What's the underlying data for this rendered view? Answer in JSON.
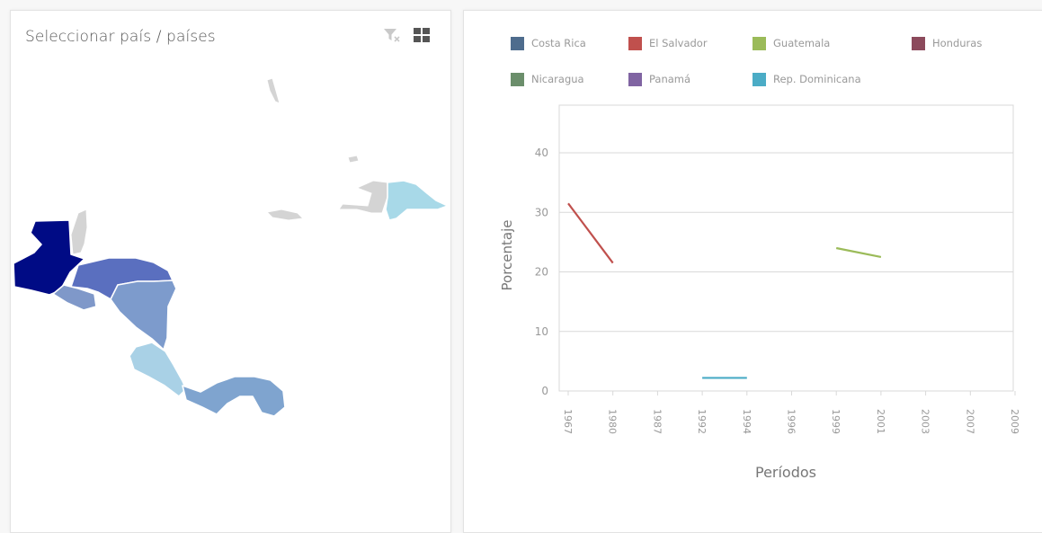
{
  "map_panel": {
    "title": "Seleccionar país / países",
    "icons": {
      "filter": "filter-clear-icon",
      "layout": "grid-layout-icon"
    },
    "colors": {
      "guatemala": "#000b85",
      "honduras": "#5a6fbf",
      "el_salvador": "#7f98c9",
      "nicaragua": "#7d9bcc",
      "costa_rica": "#a9d1e6",
      "panama": "#7fa4cf",
      "dominican_republic": "#a8d9e8",
      "other": "#d4d4d4"
    }
  },
  "chart_data": {
    "type": "line",
    "title": "",
    "xlabel": "Períodos",
    "ylabel": "Porcentaje",
    "categories": [
      "1967",
      "1980",
      "1987",
      "1992",
      "1994",
      "1996",
      "1999",
      "2001",
      "2003",
      "2007",
      "2009"
    ],
    "ylim": [
      0,
      48
    ],
    "yticks": [
      0,
      10,
      20,
      30,
      40
    ],
    "grid": true,
    "legend_position": "top",
    "series": [
      {
        "name": "Costa Rica",
        "color": "#4e6c8d",
        "values": [
          null,
          null,
          null,
          null,
          null,
          null,
          null,
          null,
          null,
          null,
          null
        ]
      },
      {
        "name": "El Salvador",
        "color": "#c0504d",
        "values": [
          31.5,
          21.5,
          null,
          null,
          null,
          null,
          null,
          null,
          null,
          null,
          null
        ]
      },
      {
        "name": "Guatemala",
        "color": "#9bbb59",
        "values": [
          null,
          null,
          null,
          null,
          null,
          null,
          24,
          22.5,
          null,
          null,
          null
        ]
      },
      {
        "name": "Honduras",
        "color": "#8c4a5c",
        "values": [
          null,
          null,
          null,
          null,
          null,
          null,
          null,
          null,
          null,
          null,
          null
        ]
      },
      {
        "name": "Nicaragua",
        "color": "#6b8e6b",
        "values": [
          null,
          null,
          null,
          null,
          null,
          null,
          null,
          null,
          null,
          null,
          null
        ]
      },
      {
        "name": "Panamá",
        "color": "#8064a2",
        "values": [
          null,
          null,
          null,
          null,
          null,
          null,
          null,
          null,
          null,
          null,
          null
        ]
      },
      {
        "name": "Rep. Dominicana",
        "color": "#4bacc6",
        "values": [
          null,
          null,
          null,
          2.2,
          2.2,
          null,
          null,
          null,
          null,
          null,
          null
        ]
      }
    ]
  }
}
